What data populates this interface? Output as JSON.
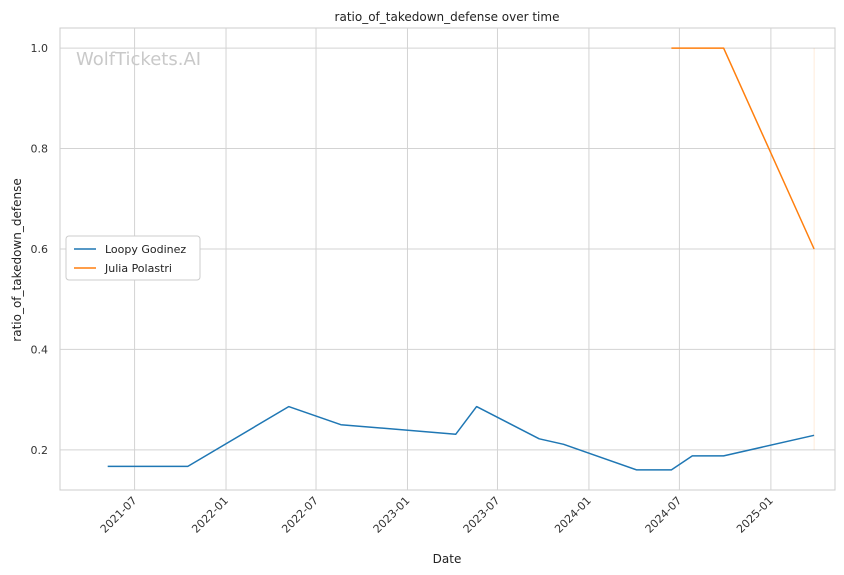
{
  "chart_data": {
    "type": "line",
    "title": "ratio_of_takedown_defense over time",
    "xlabel": "Date",
    "ylabel": "ratio_of_takedown_defense",
    "watermark": "WolfTickets.AI",
    "x_range": [
      "2021-02-01",
      "2025-05-10"
    ],
    "ylim": [
      0.12,
      1.04
    ],
    "x_ticks": [
      "2021-07",
      "2022-01",
      "2022-07",
      "2023-01",
      "2023-07",
      "2024-01",
      "2024-07",
      "2025-01"
    ],
    "y_ticks": [
      "0.2",
      "0.4",
      "0.6",
      "0.8",
      "1.0"
    ],
    "grid": true,
    "legend_position": "center-left",
    "series": [
      {
        "name": "Loopy Godinez",
        "color": "#1f77b4",
        "x": [
          "2021-05-08",
          "2021-10-16",
          "2022-05-07",
          "2022-08-20",
          "2023-04-08",
          "2023-05-20",
          "2023-09-23",
          "2023-11-11",
          "2024-04-06",
          "2024-06-15",
          "2024-07-27",
          "2024-09-28",
          "2025-03-29"
        ],
        "y": [
          0.167,
          0.167,
          0.286,
          0.25,
          0.231,
          0.286,
          0.222,
          0.211,
          0.16,
          0.16,
          0.188,
          0.188,
          0.229
        ]
      },
      {
        "name": "Julia Polastri",
        "color": "#ff7f0e",
        "x": [
          "2024-06-15",
          "2024-09-28",
          "2025-03-29"
        ],
        "y": [
          1.0,
          1.0,
          0.6
        ]
      }
    ]
  }
}
